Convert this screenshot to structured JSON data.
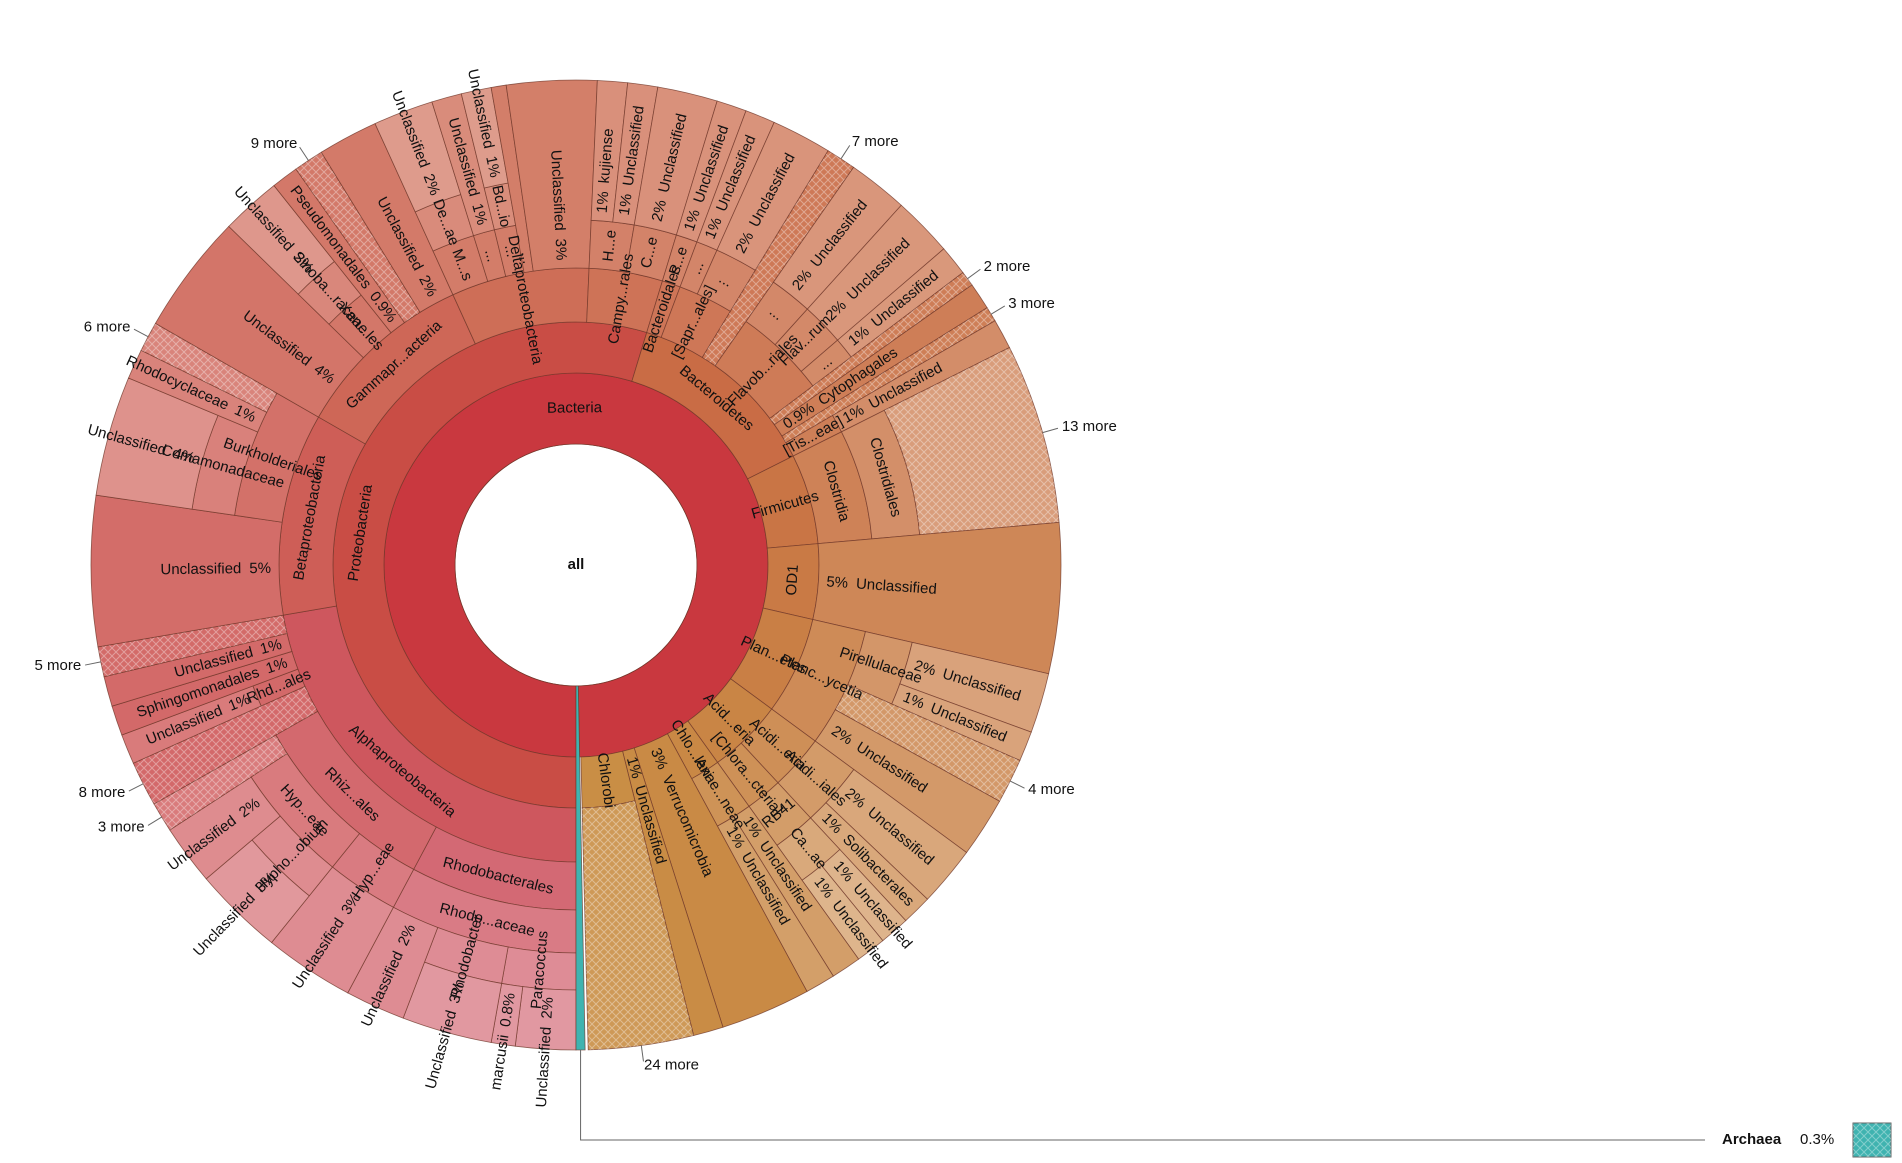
{
  "chart_data": {
    "type": "sunburst",
    "root": {
      "name": "all",
      "value": 100,
      "children": [
        {
          "name": "Bacteria",
          "value": 99.7,
          "color": "#c9383f",
          "children": [
            {
              "name": "Proteobacteria",
              "value": 54.7,
              "children": [
                {
                  "name": "Alphaproteobacteria",
                  "value": 22.3,
                  "children": [
                    {
                      "name": "Rhodobacterales",
                      "value": 7.8,
                      "children": [
                        {
                          "name": "Rhodo...aceae",
                          "value": 7.8,
                          "children": [
                            {
                              "name": "Paracoccus",
                              "value": 2.8,
                              "children": [
                                {
                                  "name": "Unclassified",
                                  "value": 2,
                                  "value_label": "2%"
                                },
                                {
                                  "name": "marcusii",
                                  "value": 0.8,
                                  "value_label": "0.8%"
                                }
                              ]
                            },
                            {
                              "name": "Rhodobacter",
                              "value": 3,
                              "children": [
                                {
                                  "name": "Unclassified",
                                  "value": 3,
                                  "value_label": "3%"
                                }
                              ]
                            },
                            {
                              "name": "Unclassified",
                              "value": 2,
                              "value_label": "2%"
                            }
                          ]
                        }
                      ]
                    },
                    {
                      "name": "Rhiz...ales",
                      "value": 9,
                      "children": [
                        {
                          "name": "Hyp...eae",
                          "value": 3,
                          "children": [
                            {
                              "name": "Unclassified",
                              "value": 3,
                              "value_label": "3%"
                            }
                          ]
                        },
                        {
                          "name": "Hyp...eae",
                          "value": 5,
                          "children": [
                            {
                              "name": "Hypho...obium",
                              "value": 3,
                              "children": [
                                {
                                  "name": "Unclassified",
                                  "value": 3,
                                  "value_label": "3%"
                                }
                              ]
                            },
                            {
                              "name": "Unclassified",
                              "value": 2,
                              "value_label": "2%"
                            }
                          ]
                        },
                        {
                          "name": "3 more",
                          "value": 1
                        }
                      ]
                    },
                    {
                      "name": "8 more",
                      "value": 1.5
                    },
                    {
                      "name": "Rhd...ales",
                      "value": 1,
                      "children": [
                        {
                          "name": "Unclassified",
                          "value": 1,
                          "value_label": "1%"
                        }
                      ]
                    },
                    {
                      "name": "Sphingomonadales",
                      "value": 1,
                      "value_label": "1%"
                    },
                    {
                      "name": "Unclassified",
                      "value": 1,
                      "value_label": "1%"
                    },
                    {
                      "name": "5 more",
                      "value": 1
                    }
                  ]
                },
                {
                  "name": "Betaproteobacteria",
                  "value": 11,
                  "children": [
                    {
                      "name": "Unclassified",
                      "value": 5,
                      "value_label": "5%"
                    },
                    {
                      "name": "Burkholderiales",
                      "value": 6,
                      "children": [
                        {
                          "name": "Comamonadaceae",
                          "value": 4,
                          "children": [
                            {
                              "name": "Unclassified",
                              "value": 4,
                              "value_label": "4%"
                            }
                          ]
                        },
                        {
                          "name": "Rhodocyclaceae",
                          "value": 1,
                          "value_label": "1%"
                        },
                        {
                          "name": "6 more",
                          "value": 1
                        }
                      ]
                    }
                  ]
                },
                {
                  "name": "Gammapr...acteria",
                  "value": 9.9,
                  "children": [
                    {
                      "name": "Unclassified",
                      "value": 4,
                      "value_label": "4%"
                    },
                    {
                      "name": "Xan...les",
                      "value": 2,
                      "children": [
                        {
                          "name": "Sinoba...raceae",
                          "value": 2,
                          "children": [
                            {
                              "name": "Unclassified",
                              "value": 2,
                              "value_label": "2%"
                            }
                          ]
                        }
                      ]
                    },
                    {
                      "name": "Pseudomonadales",
                      "value": 0.9,
                      "value_label": "0.9%"
                    },
                    {
                      "name": "9 more",
                      "value": 1
                    },
                    {
                      "name": "Unclassified",
                      "value": 2,
                      "value_label": "2%"
                    }
                  ]
                },
                {
                  "name": "Deltaproteobacteria",
                  "value": 7.5,
                  "children": [
                    {
                      "name": "M...s",
                      "value": 2,
                      "children": [
                        {
                          "name": "De...ae",
                          "value": 2,
                          "children": [
                            {
                              "name": "Unclassified",
                              "value": 2,
                              "value_label": "2%"
                            }
                          ]
                        }
                      ]
                    },
                    {
                      "name": "...",
                      "value": 1,
                      "children": [
                        {
                          "name": "Unclassified",
                          "value": 1,
                          "value_label": "1%"
                        }
                      ]
                    },
                    {
                      "name": "...",
                      "value": 1,
                      "children": [
                        {
                          "name": "Bd...io",
                          "value": 1,
                          "children": [
                            {
                              "name": "Unclassified",
                              "value": 1,
                              "value_label": "1%"
                            }
                          ]
                        }
                      ]
                    },
                    {
                      "name": "...",
                      "value": 0.5
                    },
                    {
                      "name": "Unclassified",
                      "value": 3,
                      "value_label": "3%"
                    }
                  ]
                },
                {
                  "name": "Campy...rales",
                  "value": 4,
                  "children": [
                    {
                      "name": "H...e",
                      "value": 2,
                      "children": [
                        {
                          "name": "kujiense",
                          "value": 1,
                          "value_label": "1%"
                        },
                        {
                          "name": "Unclassified",
                          "value": 1,
                          "value_label": "1%"
                        }
                      ]
                    },
                    {
                      "name": "C...e",
                      "value": 2,
                      "children": [
                        {
                          "name": "Unclassified",
                          "value": 2,
                          "value_label": "2%"
                        }
                      ]
                    }
                  ]
                }
              ]
            },
            {
              "name": "Bacteroidetes",
              "value": 12.9,
              "children": [
                {
                  "name": "Bacteroidales",
                  "value": 1,
                  "children": [
                    {
                      "name": "P...e",
                      "value": 1,
                      "children": [
                        {
                          "name": "Unclassified",
                          "value": 1,
                          "value_label": "1%"
                        }
                      ]
                    }
                  ]
                },
                {
                  "name": "[Sapr...ales]",
                  "value": 3,
                  "children": [
                    {
                      "name": "...",
                      "value": 1,
                      "children": [
                        {
                          "name": "Unclassified",
                          "value": 1,
                          "value_label": "1%"
                        }
                      ]
                    },
                    {
                      "name": "...",
                      "value": 2,
                      "children": [
                        {
                          "name": "Unclassified",
                          "value": 2,
                          "value_label": "2%"
                        }
                      ]
                    }
                  ]
                },
                {
                  "name": "7 more",
                  "value": 1
                },
                {
                  "name": "Flavob...riales",
                  "value": 5,
                  "children": [
                    {
                      "name": "...",
                      "value": 2,
                      "children": [
                        {
                          "name": "Unclassified",
                          "value": 2,
                          "value_label": "2%"
                        }
                      ]
                    },
                    {
                      "name": "Flav...rum",
                      "value": 2,
                      "children": [
                        {
                          "name": "Unclassified",
                          "value": 2,
                          "value_label": "2%"
                        }
                      ]
                    },
                    {
                      "name": "...",
                      "value": 1,
                      "children": [
                        {
                          "name": "Unclassified",
                          "value": 1,
                          "value_label": "1%"
                        }
                      ]
                    }
                  ]
                },
                {
                  "name": "2 more",
                  "value": 0.5
                },
                {
                  "name": "Cytophagales",
                  "value": 0.9,
                  "value_label": "0.9%"
                },
                {
                  "name": "3 more",
                  "value": 0.5
                },
                {
                  "name": "[Tis...eae]",
                  "value": 1,
                  "children": [
                    {
                      "name": "Unclassified",
                      "value": 1,
                      "value_label": "1%"
                    }
                  ]
                }
              ]
            },
            {
              "name": "Firmicutes",
              "value": 6,
              "children": [
                {
                  "name": "Clostridia",
                  "value": 6,
                  "children": [
                    {
                      "name": "Clostridiales",
                      "value": 6,
                      "children": [
                        {
                          "name": "13 more",
                          "value": 6
                        }
                      ]
                    }
                  ]
                }
              ]
            },
            {
              "name": "OD1",
              "value": 5,
              "children": [
                {
                  "name": "Unclassified",
                  "value": 5,
                  "value_label": "5%"
                }
              ]
            },
            {
              "name": "Plan...etes",
              "value": 6.5,
              "children": [
                {
                  "name": "Planc...ycetia",
                  "value": 6.5,
                  "children": [
                    {
                      "name": "Pirellulaceae",
                      "value": 3,
                      "children": [
                        {
                          "name": "Unclassified",
                          "value": 2,
                          "value_label": "2%"
                        },
                        {
                          "name": "Unclassified",
                          "value": 1,
                          "value_label": "1%"
                        }
                      ]
                    },
                    {
                      "name": "4 more",
                      "value": 1.5
                    },
                    {
                      "name": "Unclassified",
                      "value": 2,
                      "value_label": "2%"
                    }
                  ]
                }
              ]
            },
            {
              "name": "Acid...eria",
              "value": 5,
              "children": [
                {
                  "name": "Acidi...eria",
                  "value": 3,
                  "children": [
                    {
                      "name": "Acidi...iales",
                      "value": 3,
                      "children": [
                        {
                          "name": "Unclassified",
                          "value": 2,
                          "value_label": "2%"
                        },
                        {
                          "name": "Solibacterales",
                          "value": 1,
                          "value_label": "1%"
                        }
                      ]
                    }
                  ]
                },
                {
                  "name": "[Chlora...cteria]",
                  "value": 2,
                  "children": [
                    {
                      "name": "RB41",
                      "value": 2,
                      "children": [
                        {
                          "name": "Ca...ae",
                          "value": 2,
                          "children": [
                            {
                              "name": "Unclassified",
                              "value": 1,
                              "value_label": "1%"
                            },
                            {
                              "name": "Unclassified",
                              "value": 1,
                              "value_label": "1%"
                            }
                          ]
                        }
                      ]
                    }
                  ]
                }
              ]
            },
            {
              "name": "Chlo...lexi",
              "value": 2,
              "children": [
                {
                  "name": "Anae...neae",
                  "value": 2,
                  "children": [
                    {
                      "name": "Unclassified",
                      "value": 1,
                      "value_label": "1%"
                    },
                    {
                      "name": "Unclassified",
                      "value": 1,
                      "value_label": "1%"
                    }
                  ]
                }
              ]
            },
            {
              "name": "Verrucomicrobia",
              "value": 3,
              "value_label": "3%"
            },
            {
              "name": "Unclassified",
              "value": 1,
              "value_label": "1%"
            },
            {
              "name": "Chlorobi",
              "value": 3.5,
              "children": [
                {
                  "name": "24 more",
                  "value": 3.5
                }
              ]
            }
          ]
        },
        {
          "name": "Archaea",
          "value": 0.3,
          "value_label": "0.3%",
          "color": "#3fb3b0"
        }
      ]
    }
  }
}
